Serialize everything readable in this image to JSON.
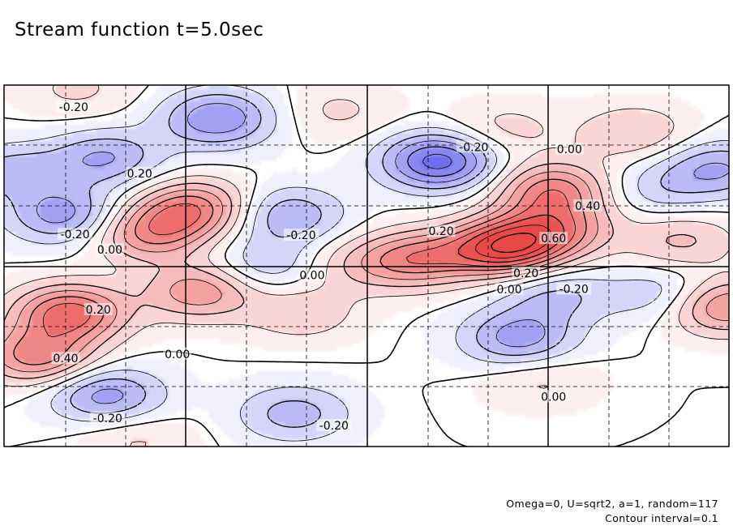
{
  "chart_data": {
    "type": "contour",
    "title": "Stream function t=5.0sec",
    "xlabel": "",
    "ylabel": "",
    "grid": true,
    "contour_interval": 0.1,
    "colors": {
      "positive": "#e84848",
      "negative": "#4848e8",
      "zero_line": "#000000"
    },
    "contour_labels": [
      {
        "text": "-0.20",
        "x": 0.096,
        "y": 0.94
      },
      {
        "text": "0.20",
        "x": 0.187,
        "y": 0.756
      },
      {
        "text": "-0.20",
        "x": 0.098,
        "y": 0.587
      },
      {
        "text": "0.00",
        "x": 0.146,
        "y": 0.545
      },
      {
        "text": "0.20",
        "x": 0.13,
        "y": 0.379
      },
      {
        "text": "0.40",
        "x": 0.085,
        "y": 0.244
      },
      {
        "text": "0.00",
        "x": 0.239,
        "y": 0.256
      },
      {
        "text": "-0.20",
        "x": 0.143,
        "y": 0.078
      },
      {
        "text": "-0.20",
        "x": 0.455,
        "y": 0.058
      },
      {
        "text": "-0.20",
        "x": 0.41,
        "y": 0.585
      },
      {
        "text": "0.00",
        "x": 0.425,
        "y": 0.474
      },
      {
        "text": "-0.20",
        "x": 0.648,
        "y": 0.829
      },
      {
        "text": "0.00",
        "x": 0.78,
        "y": 0.823
      },
      {
        "text": "0.20",
        "x": 0.603,
        "y": 0.596
      },
      {
        "text": "0.40",
        "x": 0.805,
        "y": 0.666
      },
      {
        "text": "0.60",
        "x": 0.758,
        "y": 0.576
      },
      {
        "text": "0.20",
        "x": 0.72,
        "y": 0.48
      },
      {
        "text": "0.00",
        "x": 0.697,
        "y": 0.435
      },
      {
        "text": "-0.20",
        "x": 0.786,
        "y": 0.436
      },
      {
        "text": "0.00",
        "x": 0.758,
        "y": 0.138
      }
    ],
    "extrema": [
      {
        "sign": "negative",
        "x": 0.082,
        "y": 0.64,
        "strength": 0.35
      },
      {
        "sign": "negative",
        "x": 0.14,
        "y": 0.8,
        "strength": 0.3
      },
      {
        "sign": "negative",
        "x": 0.01,
        "y": 0.76,
        "strength": 0.25
      },
      {
        "sign": "negative",
        "x": 0.29,
        "y": 0.9,
        "strength": 0.22
      },
      {
        "sign": "negative",
        "x": 0.39,
        "y": 0.64,
        "strength": 0.3
      },
      {
        "sign": "negative",
        "x": 0.36,
        "y": 0.5,
        "strength": 0.2
      },
      {
        "sign": "negative",
        "x": 0.6,
        "y": 0.79,
        "strength": 0.55
      },
      {
        "sign": "negative",
        "x": 0.71,
        "y": 0.3,
        "strength": 0.35
      },
      {
        "sign": "negative",
        "x": 0.76,
        "y": 0.42,
        "strength": 0.22
      },
      {
        "sign": "negative",
        "x": 0.918,
        "y": 0.42,
        "strength": 0.22
      },
      {
        "sign": "negative",
        "x": 0.985,
        "y": 0.77,
        "strength": 0.3
      },
      {
        "sign": "negative",
        "x": 0.9,
        "y": 0.71,
        "strength": 0.15
      },
      {
        "sign": "negative",
        "x": 0.14,
        "y": 0.14,
        "strength": 0.35
      },
      {
        "sign": "negative",
        "x": 0.4,
        "y": 0.09,
        "strength": 0.25
      },
      {
        "sign": "negative",
        "x": 0.3,
        "y": 0.92,
        "strength": 0.18
      },
      {
        "sign": "positive",
        "x": 0.09,
        "y": 0.37,
        "strength": 0.55
      },
      {
        "sign": "positive",
        "x": 0.045,
        "y": 0.25,
        "strength": 0.45
      },
      {
        "sign": "positive",
        "x": 0.2,
        "y": 0.59,
        "strength": 0.4
      },
      {
        "sign": "positive",
        "x": 0.262,
        "y": 0.66,
        "strength": 0.45
      },
      {
        "sign": "positive",
        "x": 0.27,
        "y": 0.43,
        "strength": 0.38
      },
      {
        "sign": "positive",
        "x": 0.57,
        "y": 0.52,
        "strength": 0.42
      },
      {
        "sign": "positive",
        "x": 0.69,
        "y": 0.55,
        "strength": 0.7
      },
      {
        "sign": "positive",
        "x": 0.758,
        "y": 0.71,
        "strength": 0.45
      },
      {
        "sign": "positive",
        "x": 0.76,
        "y": 0.6,
        "strength": 0.4
      },
      {
        "sign": "positive",
        "x": 0.935,
        "y": 0.57,
        "strength": 0.22
      },
      {
        "sign": "positive",
        "x": 0.99,
        "y": 0.39,
        "strength": 0.45
      },
      {
        "sign": "positive",
        "x": 0.41,
        "y": 0.37,
        "strength": 0.18
      },
      {
        "sign": "positive",
        "x": 0.485,
        "y": 0.5,
        "strength": 0.16
      },
      {
        "sign": "positive",
        "x": 0.87,
        "y": 0.87,
        "strength": 0.2
      },
      {
        "sign": "positive",
        "x": 0.1,
        "y": 0.99,
        "strength": 0.12
      },
      {
        "sign": "positive",
        "x": 0.46,
        "y": 0.93,
        "strength": 0.12
      },
      {
        "sign": "positive",
        "x": 0.69,
        "y": 0.88,
        "strength": 0.14
      },
      {
        "sign": "positive",
        "x": 0.18,
        "y": 0.02,
        "strength": 0.12
      },
      {
        "sign": "positive",
        "x": 0.74,
        "y": 0.18,
        "strength": 0.12
      }
    ],
    "annotations": [
      "Omega=0, U=sqrt2, a=1, random=117",
      "Contour interval=0.1"
    ]
  }
}
